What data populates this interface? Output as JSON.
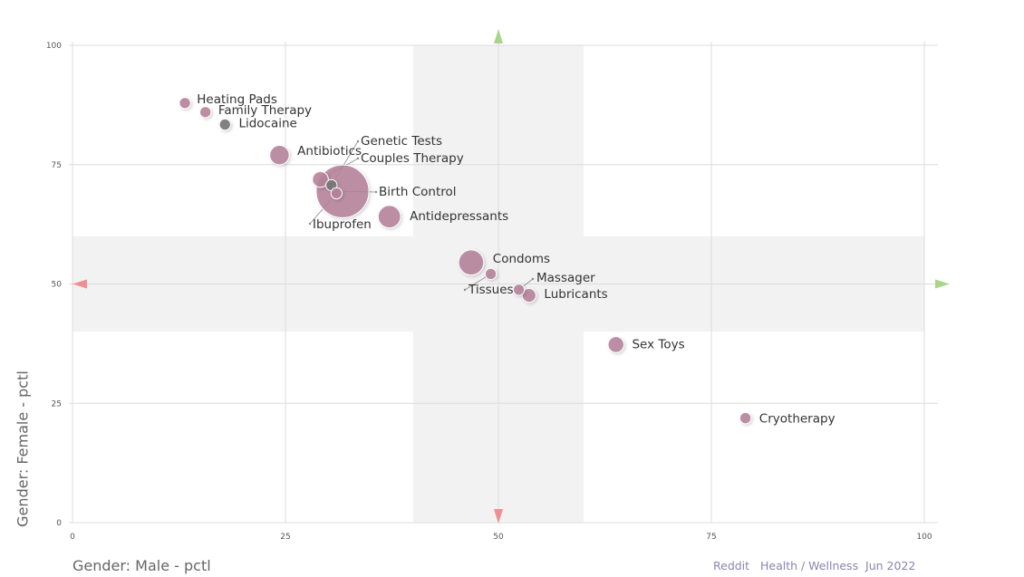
{
  "chart_data": {
    "type": "scatter",
    "xlabel": "Gender: Male - pctl",
    "ylabel": "Gender: Female - pctl",
    "xlim": [
      0,
      100
    ],
    "ylim": [
      0,
      100
    ],
    "x_ticks": [
      "0",
      "25",
      "50",
      "75",
      "100"
    ],
    "y_ticks": [
      "0",
      "25",
      "50",
      "75",
      "100"
    ],
    "grid": true,
    "bubble_color": "#b5829a",
    "highlight_color": "#777777",
    "points": [
      {
        "label": "Heating Pads",
        "x": 13.2,
        "y": 87.9,
        "size": 1
      },
      {
        "label": "Family Therapy",
        "x": 15.6,
        "y": 86.0,
        "size": 1
      },
      {
        "label": "Lidocaine",
        "x": 17.9,
        "y": 83.4,
        "size": 1,
        "highlight": true
      },
      {
        "label": "Antibiotics",
        "x": 24.3,
        "y": 77.0,
        "size": 3
      },
      {
        "label": "Genetic Tests",
        "x": 30.4,
        "y": 70.7,
        "size": 1,
        "highlight": true
      },
      {
        "label": "Couples Therapy",
        "x": 29.1,
        "y": 71.9,
        "size": 2
      },
      {
        "label": "Birth Control",
        "x": 31.7,
        "y": 69.4,
        "size": 22
      },
      {
        "label": "Ibuprofen",
        "x": 31.0,
        "y": 69.0,
        "size": 1
      },
      {
        "label": "Antidepressants",
        "x": 37.2,
        "y": 64.1,
        "size": 4
      },
      {
        "label": "Condoms",
        "x": 46.8,
        "y": 54.5,
        "size": 5
      },
      {
        "label": "Tissues",
        "x": 49.1,
        "y": 52.1,
        "size": 1
      },
      {
        "label": "Massager",
        "x": 52.4,
        "y": 48.8,
        "size": 1
      },
      {
        "label": "Lubricants",
        "x": 53.6,
        "y": 47.6,
        "size": 1.5
      },
      {
        "label": "Sex Toys",
        "x": 63.8,
        "y": 37.3,
        "size": 2
      },
      {
        "label": "Cryotherapy",
        "x": 79.0,
        "y": 21.9,
        "size": 1
      }
    ]
  },
  "footer": "Reddit   Health / Wellness  Jun 2022"
}
